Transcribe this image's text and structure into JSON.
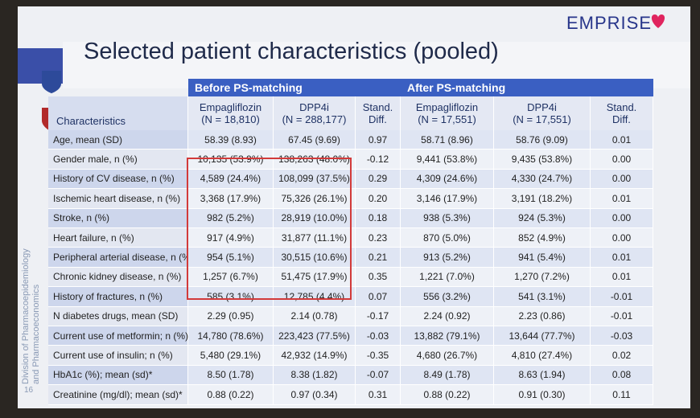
{
  "title": "Selected patient characteristics (pooled)",
  "brand": "EMPRISE",
  "side_text": [
    "Division of Pharmacoepidemiology",
    "and Pharmacoeconomics"
  ],
  "slide_number": "16",
  "table": {
    "groups": [
      "Before PS-matching",
      "After PS-matching"
    ],
    "columns": [
      [
        "Characteristics"
      ],
      [
        "Empagliflozin",
        "(N = 18,810)"
      ],
      [
        "DPP4i",
        "(N = 288,177)"
      ],
      [
        "Stand.",
        "Diff."
      ],
      [
        "Empagliflozin",
        "(N = 17,551)"
      ],
      [
        "DPP4i",
        "(N = 17,551)"
      ],
      [
        "Stand.",
        "Diff."
      ]
    ],
    "rows": [
      [
        "Age, mean (SD)",
        "58.39 (8.93)",
        "67.45 (9.69)",
        "0.97",
        "58.71 (8.96)",
        "58.76 (9.09)",
        "0.01"
      ],
      [
        "Gender male, n (%)",
        "10,135 (53.9%)",
        "138,263 (48.0%)",
        "-0.12",
        "9,441 (53.8%)",
        "9,435 (53.8%)",
        "0.00"
      ],
      [
        "History of CV disease, n (%)",
        "4,589 (24.4%)",
        "108,099 (37.5%)",
        "0.29",
        "4,309 (24.6%)",
        "4,330 (24.7%)",
        "0.00"
      ],
      [
        "Ischemic heart disease, n (%)",
        "3,368 (17.9%)",
        "75,326 (26.1%)",
        "0.20",
        "3,146 (17.9%)",
        "3,191 (18.2%)",
        "0.01"
      ],
      [
        "Stroke, n (%)",
        "982 (5.2%)",
        "28,919 (10.0%)",
        "0.18",
        "938 (5.3%)",
        "924 (5.3%)",
        "0.00"
      ],
      [
        "Heart failure, n (%)",
        "917 (4.9%)",
        "31,877 (11.1%)",
        "0.23",
        "870 (5.0%)",
        "852 (4.9%)",
        "0.00"
      ],
      [
        "Peripheral arterial disease, n (%)",
        "954 (5.1%)",
        "30,515 (10.6%)",
        "0.21",
        "913 (5.2%)",
        "941 (5.4%)",
        "0.01"
      ],
      [
        "Chronic kidney disease, n (%)",
        "1,257 (6.7%)",
        "51,475 (17.9%)",
        "0.35",
        "1,221 (7.0%)",
        "1,270 (7.2%)",
        "0.01"
      ],
      [
        "History of fractures, n (%)",
        "585 (3.1%)",
        "12,785 (4.4%)",
        "0.07",
        "556 (3.2%)",
        "541 (3.1%)",
        "-0.01"
      ],
      [
        "N diabetes drugs, mean (SD)",
        "2.29 (0.95)",
        "2.14 (0.78)",
        "-0.17",
        "2.24 (0.92)",
        "2.23 (0.86)",
        "-0.01"
      ],
      [
        "Current use of metformin; n (%)",
        "14,780 (78.6%)",
        "223,423 (77.5%)",
        "-0.03",
        "13,882 (79.1%)",
        "13,644 (77.7%)",
        "-0.03"
      ],
      [
        "Current use of insulin; n (%)",
        "5,480 (29.1%)",
        "42,932 (14.9%)",
        "-0.35",
        "4,680 (26.7%)",
        "4,810 (27.4%)",
        "0.02"
      ],
      [
        "HbA1c (%); mean (sd)*",
        "8.50 (1.78)",
        "8.38 (1.82)",
        "-0.07",
        "8.49 (1.78)",
        "8.63 (1.94)",
        "0.08"
      ],
      [
        "Creatinine (mg/dl); mean (sd)*",
        "0.88 (0.22)",
        "0.97 (0.34)",
        "0.31",
        "0.88 (0.22)",
        "0.91 (0.30)",
        "0.11"
      ]
    ]
  }
}
